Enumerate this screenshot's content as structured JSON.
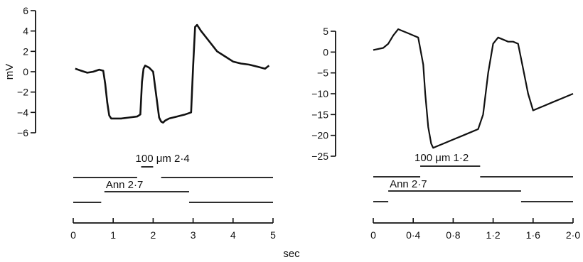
{
  "chart_data": [
    {
      "type": "line",
      "ylabel": "mV",
      "xlim": [
        0,
        5
      ],
      "ylim": [
        -6,
        6
      ],
      "y_ticks": [
        "6",
        "4",
        "2",
        "0",
        "−2",
        "−4",
        "−6"
      ],
      "y_tick_values": [
        6,
        4,
        2,
        0,
        -2,
        -4,
        -6
      ],
      "x_ticks": [
        "0",
        "1",
        "2",
        "3",
        "4",
        "5"
      ],
      "x_tick_values": [
        0,
        1,
        2,
        3,
        4,
        5
      ],
      "annotations": [
        "100 μm 2·4",
        "Ann 2·7"
      ],
      "series": [
        {
          "x": [
            0.05,
            0.2,
            0.35,
            0.5,
            0.65,
            0.75,
            0.8,
            0.85,
            0.9,
            0.95,
            1.0,
            1.2,
            1.4,
            1.6,
            1.68,
            1.72,
            1.76,
            1.8,
            1.9,
            2.0,
            2.05,
            2.1,
            2.15,
            2.2,
            2.25,
            2.3,
            2.4,
            2.6,
            2.8,
            2.95,
            3.0,
            3.05,
            3.1,
            3.2,
            3.4,
            3.6,
            3.8,
            4.0,
            4.2,
            4.4,
            4.6,
            4.8,
            4.9
          ],
          "y": [
            0.3,
            0.1,
            -0.1,
            0.0,
            0.2,
            0.1,
            -1.2,
            -3.0,
            -4.3,
            -4.6,
            -4.6,
            -4.6,
            -4.5,
            -4.4,
            -4.2,
            -1.0,
            0.3,
            0.6,
            0.4,
            0.0,
            -1.5,
            -3.0,
            -4.5,
            -4.9,
            -5.0,
            -4.8,
            -4.6,
            -4.4,
            -4.2,
            -4.0,
            0.5,
            4.4,
            4.6,
            4.0,
            3.0,
            2.0,
            1.5,
            1.0,
            0.8,
            0.7,
            0.5,
            0.3,
            0.6
          ]
        }
      ],
      "stimulus_bars": [
        {
          "label_index": 0,
          "segments": [
            [
              0,
              1.6
            ],
            [
              2.2,
              5
            ]
          ],
          "marker": [
            1.7,
            2.0
          ]
        },
        {
          "label_index": 1,
          "segments": [
            [
              0,
              0.7
            ],
            [
              2.9,
              5
            ]
          ],
          "marker": [
            0.78,
            2.9
          ]
        }
      ]
    },
    {
      "type": "line",
      "xlim": [
        0,
        2.0
      ],
      "ylim": [
        -25,
        5
      ],
      "y_ticks": [
        "5",
        "0",
        "−5",
        "−10",
        "−15",
        "−20",
        "−25"
      ],
      "y_tick_values": [
        5,
        0,
        -5,
        -10,
        -15,
        -20,
        -25
      ],
      "x_ticks": [
        "0",
        "0·4",
        "0·8",
        "1·2",
        "1·6",
        "2·0"
      ],
      "x_tick_values": [
        0,
        0.4,
        0.8,
        1.2,
        1.6,
        2.0
      ],
      "annotations": [
        "100 μm 1·2",
        "Ann 2·7"
      ],
      "series": [
        {
          "x": [
            0.0,
            0.1,
            0.15,
            0.2,
            0.25,
            0.3,
            0.35,
            0.4,
            0.45,
            0.5,
            0.52,
            0.55,
            0.58,
            0.6,
            0.65,
            0.7,
            0.8,
            0.9,
            1.0,
            1.05,
            1.1,
            1.15,
            1.2,
            1.25,
            1.3,
            1.35,
            1.4,
            1.45,
            1.5,
            1.55,
            1.6,
            1.7,
            1.8,
            1.9,
            2.0
          ],
          "y": [
            0.5,
            1.0,
            2.0,
            4.0,
            5.5,
            5.0,
            4.5,
            4.0,
            3.5,
            -3.0,
            -10.0,
            -18.0,
            -22.0,
            -23.0,
            -22.5,
            -22.0,
            -21.0,
            -20.0,
            -19.0,
            -18.5,
            -15.0,
            -5.0,
            2.0,
            3.5,
            3.0,
            2.5,
            2.5,
            2.0,
            -4.0,
            -10.0,
            -14.0,
            -13.0,
            -12.0,
            -11.0,
            -10.0
          ]
        }
      ],
      "stimulus_bars": [
        {
          "label_index": 0,
          "segments": [
            [
              0,
              0.47
            ],
            [
              1.07,
              2.0
            ]
          ],
          "marker": [
            0.47,
            1.07
          ]
        },
        {
          "label_index": 1,
          "segments": [
            [
              0,
              0.15
            ],
            [
              1.48,
              2.0
            ]
          ],
          "marker": [
            0.15,
            1.48
          ]
        }
      ]
    }
  ],
  "shared_xlabel": "sec"
}
